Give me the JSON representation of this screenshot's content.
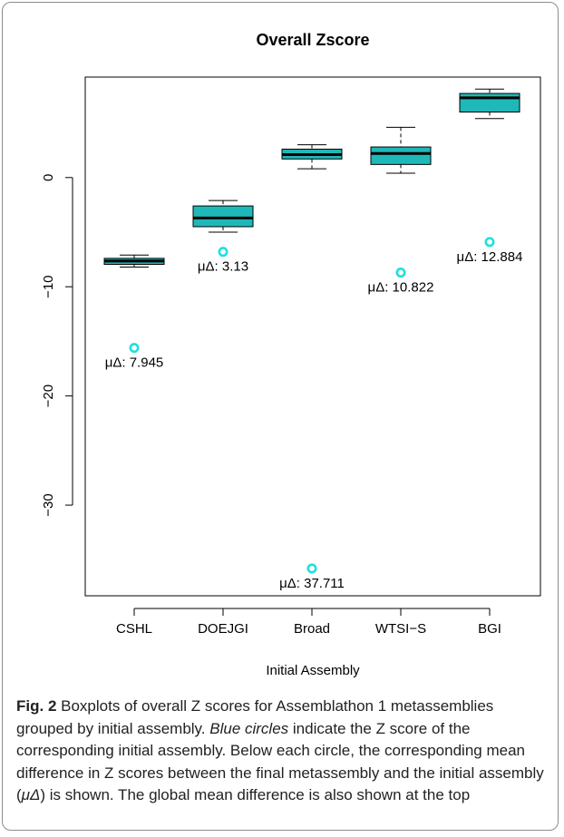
{
  "chart_data": {
    "type": "boxplot",
    "title": "Overall Zscore",
    "xlabel": "Initial Assembly",
    "ylabel": "",
    "ylim": [
      -38.3,
      9.2
    ],
    "yticks": [
      0,
      -10,
      -20,
      -30
    ],
    "yticklabels": [
      "0",
      "−10",
      "−20",
      "−30"
    ],
    "categories": [
      "CSHL",
      "DOEJGI",
      "Broad",
      "WTSI−S",
      "BGI"
    ],
    "boxes": [
      {
        "category": "CSHL",
        "whisker_low": -8.2,
        "q1": -7.95,
        "median": -7.65,
        "q3": -7.4,
        "whisker_high": -7.1
      },
      {
        "category": "DOEJGI",
        "whisker_low": -5.0,
        "q1": -4.5,
        "median": -3.7,
        "q3": -2.6,
        "whisker_high": -2.1
      },
      {
        "category": "Broad",
        "whisker_low": 0.8,
        "q1": 1.7,
        "median": 2.1,
        "q3": 2.6,
        "whisker_high": 3.0
      },
      {
        "category": "WTSI−S",
        "whisker_low": 0.4,
        "q1": 1.2,
        "median": 2.2,
        "q3": 2.8,
        "whisker_high": 4.6
      },
      {
        "category": "BGI",
        "whisker_low": 5.4,
        "q1": 6.0,
        "median": 7.3,
        "q3": 7.7,
        "whisker_high": 8.1
      }
    ],
    "initial_points": [
      {
        "category": "CSHL",
        "y": -15.6
      },
      {
        "category": "DOEJGI",
        "y": -6.8
      },
      {
        "category": "Broad",
        "y": -35.8
      },
      {
        "category": "WTSI−S",
        "y": -8.7
      },
      {
        "category": "BGI",
        "y": -5.9
      }
    ],
    "annotations": [
      "μΔ: 7.945",
      "μΔ: 3.13",
      "μΔ: 37.711",
      "μΔ: 10.822",
      "μΔ: 12.884"
    ],
    "colors": {
      "box_fill": "#1fb8b8",
      "circle": "#1ee0e0",
      "line": "#000000"
    }
  },
  "caption": {
    "figure_label": "Fig. 2",
    "text_1": " Boxplots of overall Z scores for Assemblathon 1 metassemblies grouped by initial assembly. ",
    "emphasis": "Blue circles",
    "text_2": " indicate the Z score of the corresponding initial assembly. Below each circle, the corresponding mean difference in Z scores between the final metassembly and the initial assembly (",
    "symbol": "μΔ",
    "text_3": ") is shown. The global mean difference is also shown at the top"
  }
}
